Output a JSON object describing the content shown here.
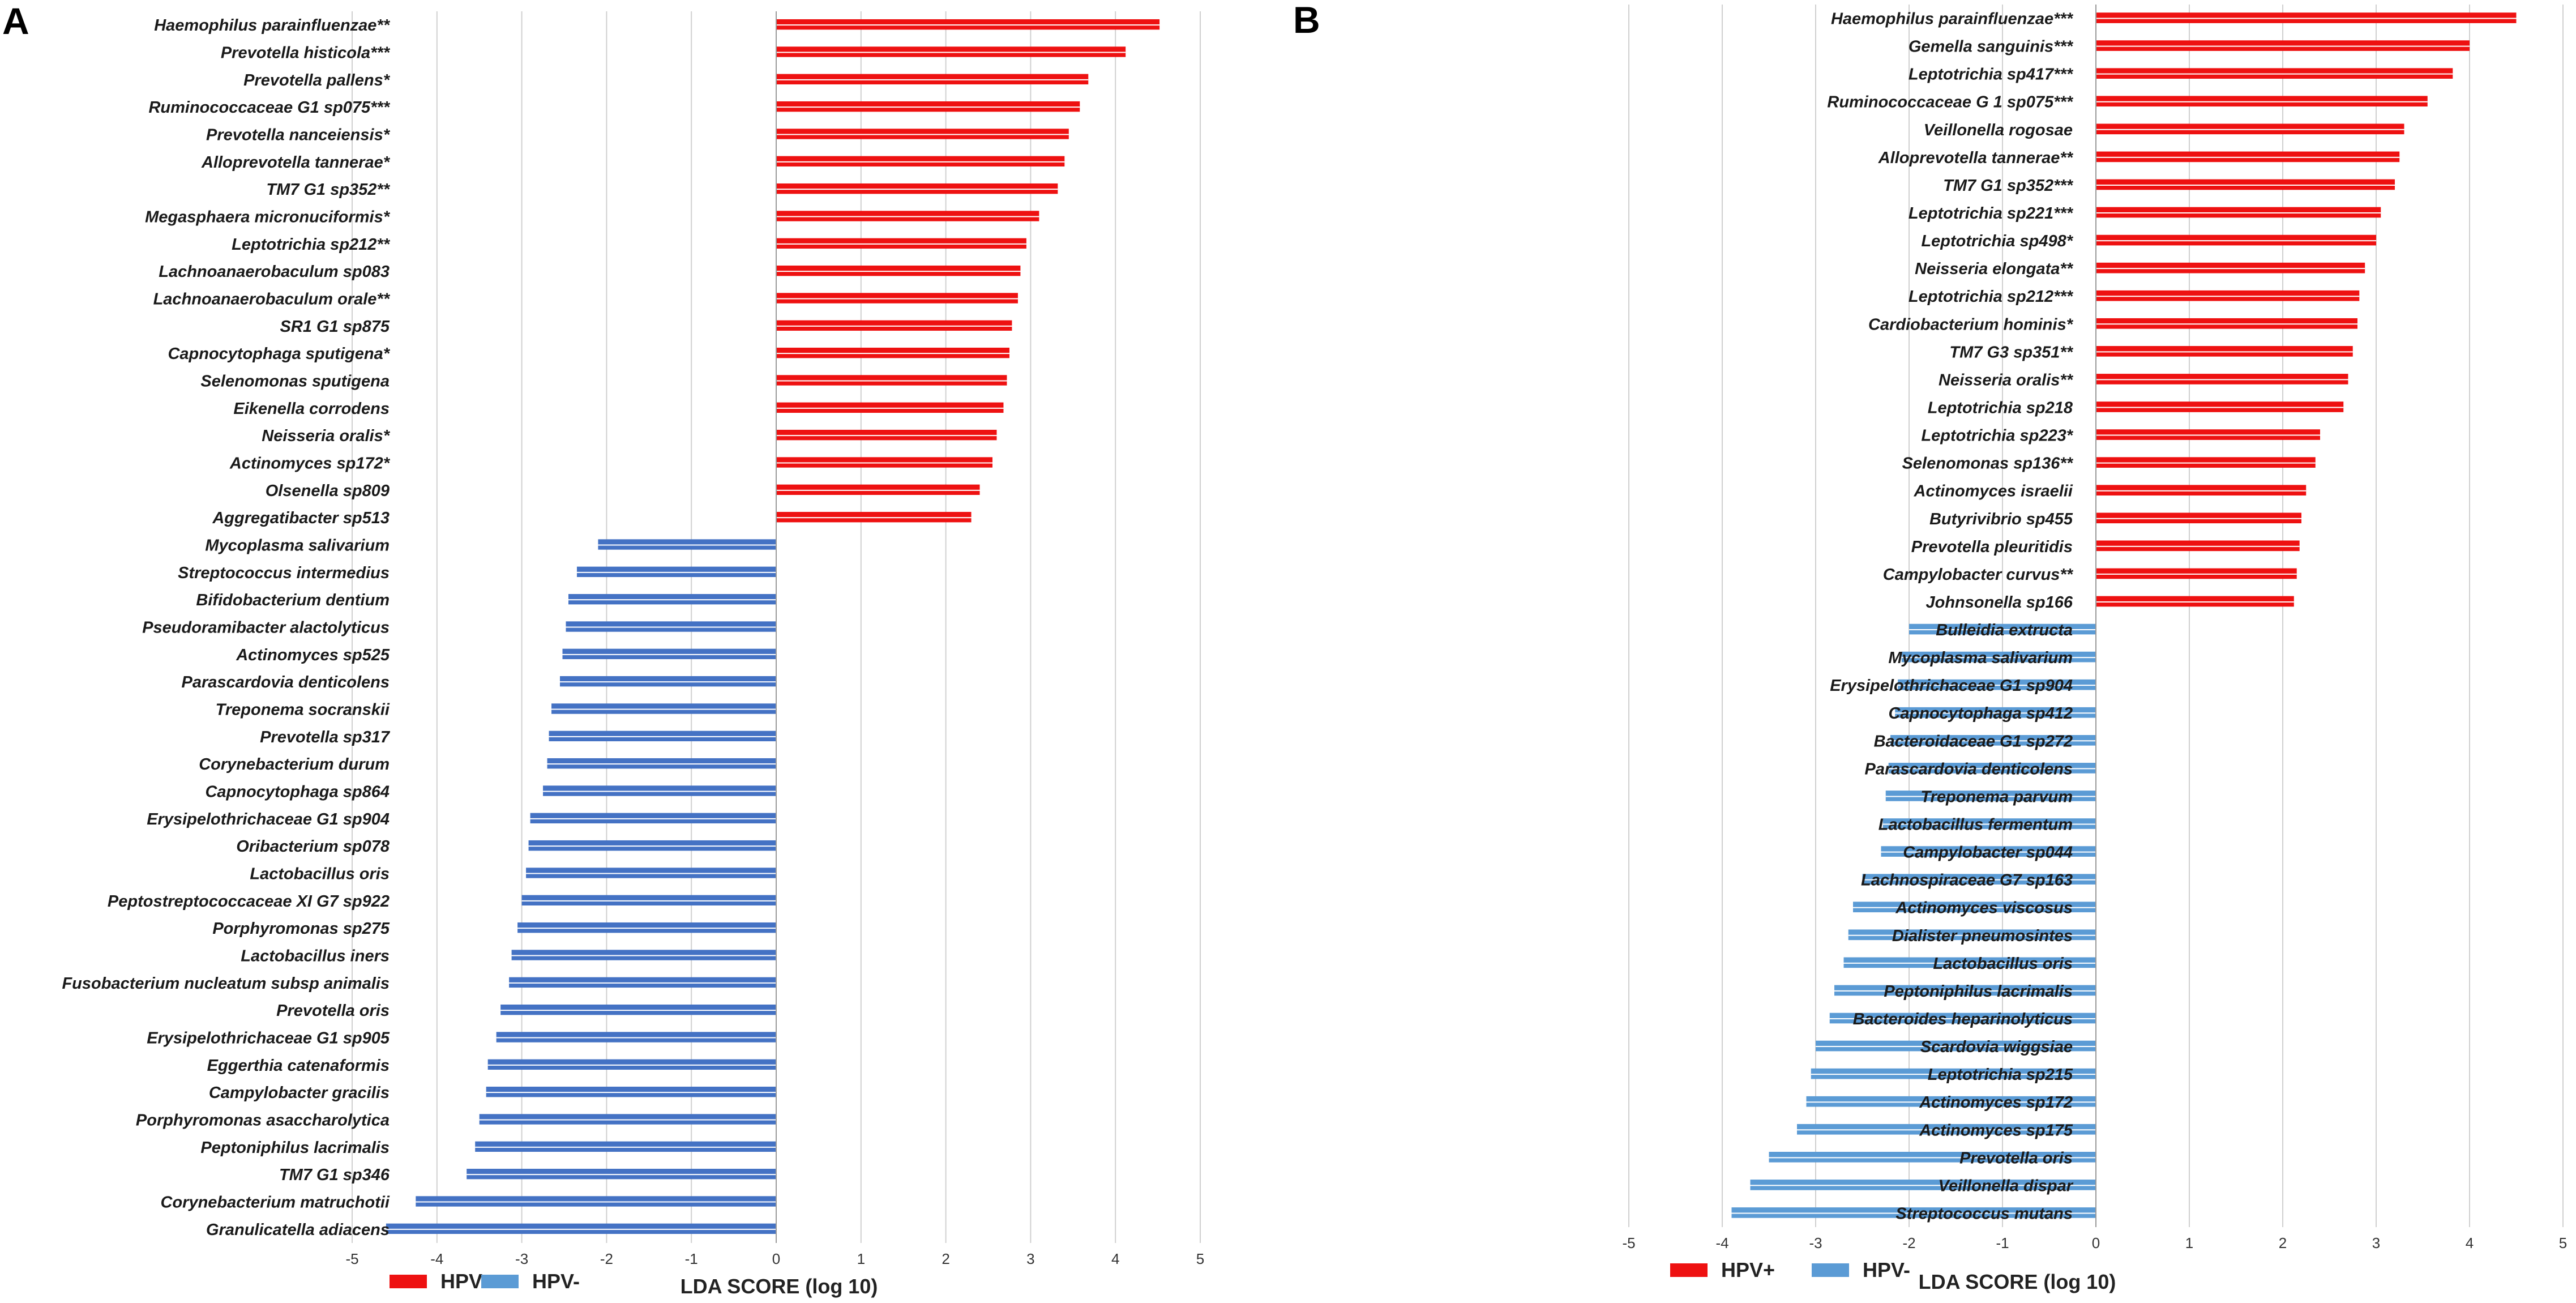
{
  "figure": {
    "panels": [
      "A",
      "B"
    ]
  },
  "chart_data": [
    {
      "panel": "A",
      "type": "bar",
      "orientation": "horizontal",
      "xlabel": "LDA SCORE (log 10)",
      "xlim": [
        -5,
        5
      ],
      "xticks": [
        "-5",
        "-4",
        "-3",
        "-2",
        "-1",
        "0",
        "1",
        "2",
        "3",
        "4",
        "5"
      ],
      "grid": true,
      "legend": [
        {
          "label": "HPV+",
          "color": "#ee1111"
        },
        {
          "label": "HPV-",
          "color": "#5b9bd5"
        }
      ],
      "series": [
        {
          "name": "HPV+",
          "color": "#ee1111",
          "categories": [
            "Haemophilus parainfluenzae**",
            "Prevotella histicola***",
            "Prevotella pallens*",
            "Ruminococcaceae G1  sp075***",
            "Prevotella nanceiensis*",
            "Alloprevotella tannerae*",
            "TM7 G1  sp352**",
            "Megasphaera micronuciformis*",
            "Leptotrichia sp212**",
            "Lachnoanaerobaculum sp083",
            "Lachnoanaerobaculum orale**",
            "SR1 G1  sp875",
            "Capnocytophaga sputigena*",
            "Selenomonas sputigena",
            "Eikenella corrodens",
            "Neisseria oralis*",
            "Actinomyces sp172*",
            "Olsenella sp809",
            "Aggregatibacter sp513"
          ],
          "values": [
            4.52,
            4.12,
            3.68,
            3.58,
            3.45,
            3.4,
            3.32,
            3.1,
            2.95,
            2.88,
            2.85,
            2.78,
            2.75,
            2.72,
            2.68,
            2.6,
            2.55,
            2.4,
            2.3
          ]
        },
        {
          "name": "HPV-",
          "color": "#4472c4",
          "categories": [
            "Mycoplasma salivarium",
            "Streptococcus intermedius",
            "Bifidobacterium dentium",
            "Pseudoramibacter alactolyticus",
            "Actinomyces sp525",
            "Parascardovia denticolens",
            "Treponema socranskii",
            "Prevotella sp317",
            "Corynebacterium durum",
            "Capnocytophaga sp864",
            "Erysipelothrichaceae G1  sp904",
            "Oribacterium sp078",
            "Lactobacillus oris",
            "Peptostreptococcaceae XI  G7  sp922",
            "Porphyromonas sp275",
            "Lactobacillus iners",
            "Fusobacterium nucleatum subsp animalis",
            "Prevotella oris",
            "Erysipelothrichaceae G1  sp905",
            "Eggerthia catenaformis",
            "Campylobacter gracilis",
            "Porphyromonas asaccharolytica",
            "Peptoniphilus lacrimalis",
            "TM7 G1  sp346",
            "Corynebacterium matruchotii",
            "Granulicatella adiacens"
          ],
          "values": [
            -2.1,
            -2.35,
            -2.45,
            -2.48,
            -2.52,
            -2.55,
            -2.65,
            -2.68,
            -2.7,
            -2.75,
            -2.9,
            -2.92,
            -2.95,
            -3.0,
            -3.05,
            -3.12,
            -3.15,
            -3.25,
            -3.3,
            -3.4,
            -3.42,
            -3.5,
            -3.55,
            -3.65,
            -4.25,
            -4.6
          ]
        }
      ]
    },
    {
      "panel": "B",
      "type": "bar",
      "orientation": "horizontal",
      "xlabel": "LDA SCORE (log 10)",
      "xlim": [
        -5,
        5
      ],
      "xticks": [
        "-5",
        "-4",
        "-3",
        "-2",
        "-1",
        "0",
        "1",
        "2",
        "3",
        "4",
        "5"
      ],
      "grid": true,
      "legend": [
        {
          "label": "HPV+",
          "color": "#ee1111"
        },
        {
          "label": "HPV-",
          "color": "#5b9bd5"
        }
      ],
      "series": [
        {
          "name": "HPV+",
          "color": "#ee1111",
          "categories": [
            "Haemophilus parainfluenzae***",
            "Gemella sanguinis***",
            "Leptotrichia sp417***",
            "Ruminococcaceae G 1  sp075***",
            "Veillonella rogosae",
            "Alloprevotella tannerae**",
            "TM7 G1  sp352***",
            "Leptotrichia sp221***",
            "Leptotrichia sp498*",
            "Neisseria elongata**",
            "Leptotrichia sp212***",
            "Cardiobacterium hominis*",
            "TM7 G3  sp351**",
            "Neisseria oralis**",
            "Leptotrichia sp218",
            "Leptotrichia sp223*",
            "Selenomonas sp136**",
            "Actinomyces israelii",
            "Butyrivibrio sp455",
            "Prevotella pleuritidis",
            "Campylobacter curvus**",
            "Johnsonella sp166"
          ],
          "values": [
            4.5,
            4.0,
            3.82,
            3.55,
            3.3,
            3.25,
            3.2,
            3.05,
            3.0,
            2.88,
            2.82,
            2.8,
            2.75,
            2.7,
            2.65,
            2.4,
            2.35,
            2.25,
            2.2,
            2.18,
            2.15,
            2.12
          ]
        },
        {
          "name": "HPV-",
          "color": "#5b9bd5",
          "categories": [
            "Bulleidia extructa",
            "Mycoplasma salivarium",
            "Erysipelothrichaceae G1  sp904",
            "Capnocytophaga sp412",
            "Bacteroidaceae G1  sp272",
            "Parascardovia denticolens",
            "Treponema parvum",
            "Lactobacillus fermentum",
            "Campylobacter sp044",
            "Lachnospiraceae G7  sp163",
            "Actinomyces viscosus",
            "Dialister pneumosintes",
            "Lactobacillus oris",
            "Peptoniphilus lacrimalis",
            "Bacteroides heparinolyticus",
            "Scardovia wiggsiae",
            "Leptotrichia sp215",
            "Actinomyces sp172",
            "Actinomyces sp175",
            "Prevotella oris",
            "Veillonella dispar",
            "Streptococcus mutans"
          ],
          "values": [
            -2.0,
            -2.08,
            -2.12,
            -2.15,
            -2.2,
            -2.22,
            -2.25,
            -2.28,
            -2.3,
            -2.5,
            -2.6,
            -2.65,
            -2.7,
            -2.8,
            -2.85,
            -3.0,
            -3.05,
            -3.1,
            -3.2,
            -3.5,
            -3.7,
            -3.9
          ]
        }
      ]
    }
  ]
}
